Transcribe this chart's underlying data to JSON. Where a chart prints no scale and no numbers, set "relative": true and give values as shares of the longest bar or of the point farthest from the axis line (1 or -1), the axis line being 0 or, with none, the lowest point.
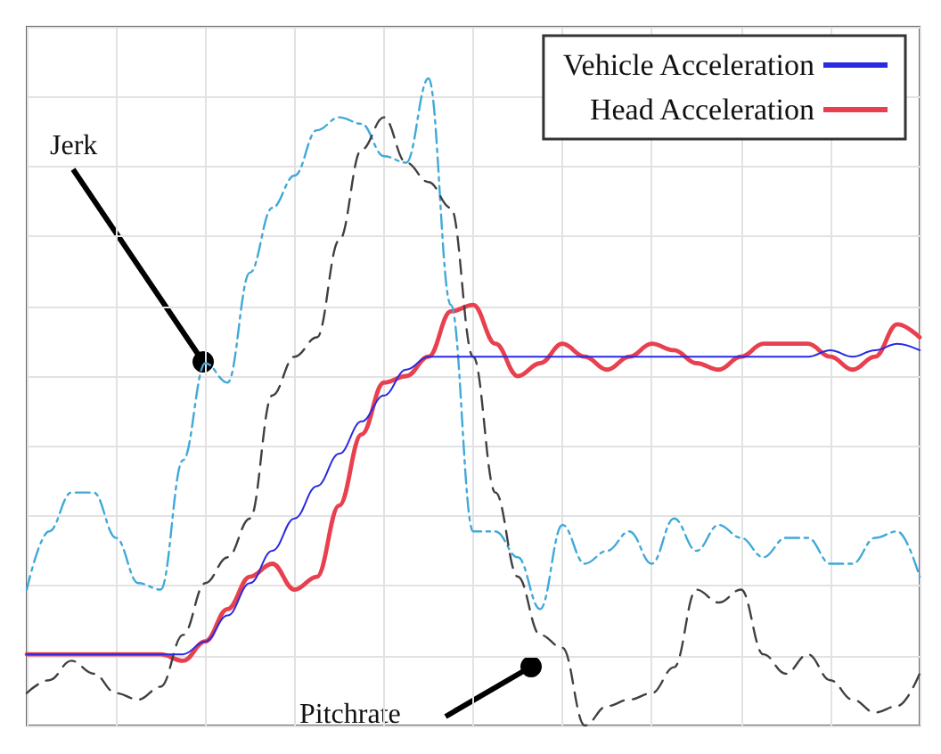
{
  "chart_data": {
    "type": "line",
    "relative": true,
    "grid": true,
    "legend": "top right",
    "marker": "none",
    "categories": [
      null,
      null,
      null,
      null,
      null,
      null,
      null,
      null,
      null,
      null,
      null,
      null,
      null,
      null,
      null,
      null,
      null,
      null,
      null,
      null,
      null,
      null,
      null,
      null,
      null,
      null,
      null,
      null,
      null,
      null,
      null,
      null,
      null,
      null,
      null,
      null,
      null,
      null,
      null,
      null,
      null
    ],
    "series": [
      {
        "name": "Vehicle Acceleration",
        "color": "#2a2ae0",
        "line_style": "solid",
        "values": [
          0.11,
          0.11,
          0.11,
          0.11,
          0.11,
          0.11,
          0.11,
          0.11,
          0.13,
          0.17,
          0.22,
          0.27,
          0.32,
          0.37,
          0.42,
          0.47,
          0.51,
          0.55,
          0.57,
          0.57,
          0.57,
          0.57,
          0.57,
          0.57,
          0.57,
          0.57,
          0.57,
          0.57,
          0.57,
          0.57,
          0.57,
          0.57,
          0.57,
          0.57,
          0.57,
          0.57,
          0.58,
          0.57,
          0.58,
          0.59,
          0.58
        ]
      },
      {
        "name": "Head Acceleration",
        "color": "#e8404f",
        "line_style": "solid",
        "values": [
          0.11,
          0.11,
          0.11,
          0.11,
          0.11,
          0.11,
          0.11,
          0.1,
          0.13,
          0.18,
          0.23,
          0.25,
          0.21,
          0.23,
          0.34,
          0.45,
          0.53,
          0.54,
          0.57,
          0.64,
          0.65,
          0.59,
          0.54,
          0.56,
          0.59,
          0.57,
          0.55,
          0.57,
          0.59,
          0.58,
          0.56,
          0.55,
          0.57,
          0.59,
          0.59,
          0.59,
          0.57,
          0.55,
          0.57,
          0.62,
          0.6
        ]
      },
      {
        "color": "#3fa9d8",
        "line_style": "dashdot",
        "values": [
          0.21,
          0.3,
          0.36,
          0.36,
          0.29,
          0.22,
          0.21,
          0.41,
          0.56,
          0.53,
          0.7,
          0.8,
          0.85,
          0.92,
          0.94,
          0.93,
          0.88,
          0.87,
          1.0,
          0.65,
          0.3,
          0.3,
          0.26,
          0.18,
          0.31,
          0.25,
          0.27,
          0.3,
          0.25,
          0.32,
          0.27,
          0.31,
          0.29,
          0.26,
          0.29,
          0.29,
          0.25,
          0.25,
          0.29,
          0.3,
          0.23
        ]
      },
      {
        "color": "#404040",
        "line_style": "dashed",
        "values": [
          0.05,
          0.07,
          0.1,
          0.08,
          0.05,
          0.04,
          0.06,
          0.14,
          0.22,
          0.26,
          0.32,
          0.51,
          0.57,
          0.6,
          0.75,
          0.89,
          0.94,
          0.87,
          0.84,
          0.8,
          0.57,
          0.36,
          0.23,
          0.14,
          0.12,
          0,
          0.03,
          0.04,
          0.05,
          0.09,
          0.21,
          0.19,
          0.21,
          0.11,
          0.08,
          0.11,
          0.07,
          0.04,
          0.02,
          0.03,
          0.08
        ]
      }
    ],
    "annotations": [
      "Jerk",
      "Pitchrate"
    ]
  }
}
